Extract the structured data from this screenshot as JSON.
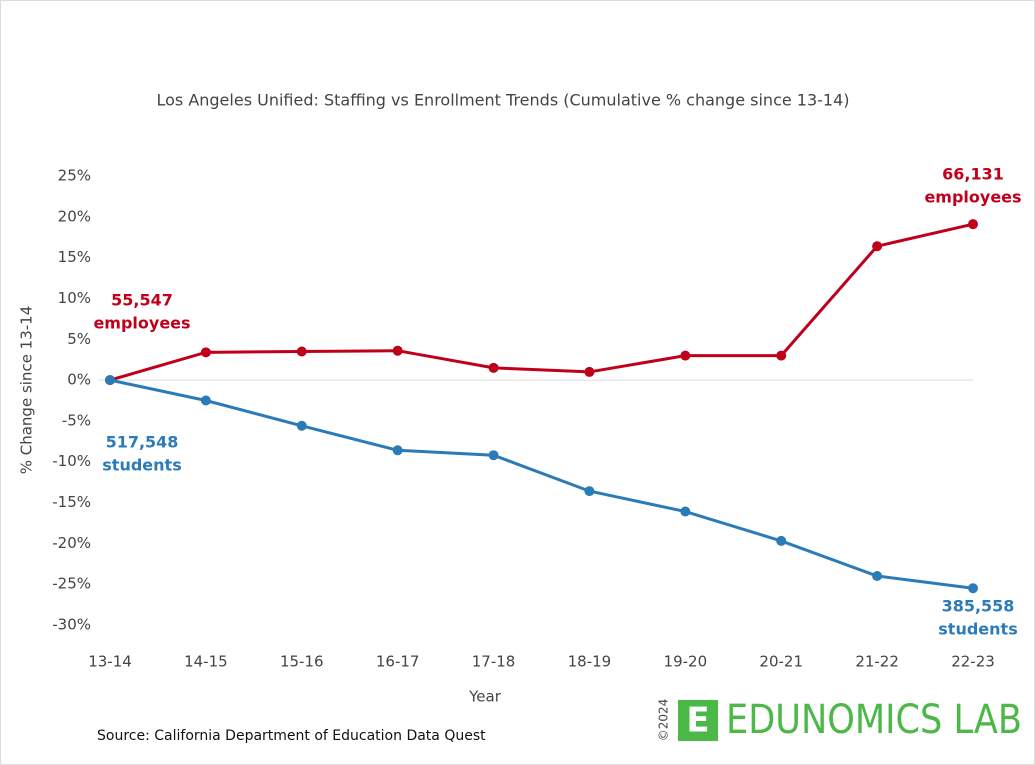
{
  "chart_data": {
    "type": "line",
    "title": "Los Angeles Unified: Staffing vs Enrollment Trends (Cumulative % change since 13-14)",
    "x_label": "Year",
    "y_label": "% Change since 13-14",
    "categories": [
      "13-14",
      "14-15",
      "15-16",
      "16-17",
      "17-18",
      "18-19",
      "19-20",
      "20-21",
      "21-22",
      "22-23"
    ],
    "series": [
      {
        "name": "employees",
        "color": "#c0001a",
        "values": [
          0,
          3.4,
          3.5,
          3.6,
          1.5,
          1.0,
          3.0,
          3.0,
          16.4,
          19.1
        ],
        "start_label": [
          "55,547",
          "employees"
        ],
        "end_label": [
          "66,131",
          "employees"
        ]
      },
      {
        "name": "students",
        "color": "#2b7bb9",
        "values": [
          0,
          -2.5,
          -5.6,
          -8.6,
          -9.2,
          -13.6,
          -16.1,
          -19.7,
          -24.0,
          -25.5
        ],
        "start_label": [
          "517,548",
          "students"
        ],
        "end_label": [
          "385,558",
          "students"
        ]
      }
    ],
    "ylim": [
      -30,
      25
    ],
    "yticks": [
      {
        "value": 25,
        "label": "25%"
      },
      {
        "value": 20,
        "label": "20%"
      },
      {
        "value": 15,
        "label": "15%"
      },
      {
        "value": 10,
        "label": "10%"
      },
      {
        "value": 5,
        "label": "5%"
      },
      {
        "value": 0,
        "label": "0%"
      },
      {
        "value": -5,
        "label": "-5%"
      },
      {
        "value": -10,
        "label": "-10%"
      },
      {
        "value": -15,
        "label": "-15%"
      },
      {
        "value": -20,
        "label": "-20%"
      },
      {
        "value": -25,
        "label": "-25%"
      },
      {
        "value": -30,
        "label": "-30%"
      }
    ],
    "source": "Source: California Department of Education Data Quest"
  },
  "branding": {
    "logo_letter": "E",
    "name": "EDUNOMICS LAB",
    "copyright": "©2024",
    "color": "#4cb848"
  }
}
